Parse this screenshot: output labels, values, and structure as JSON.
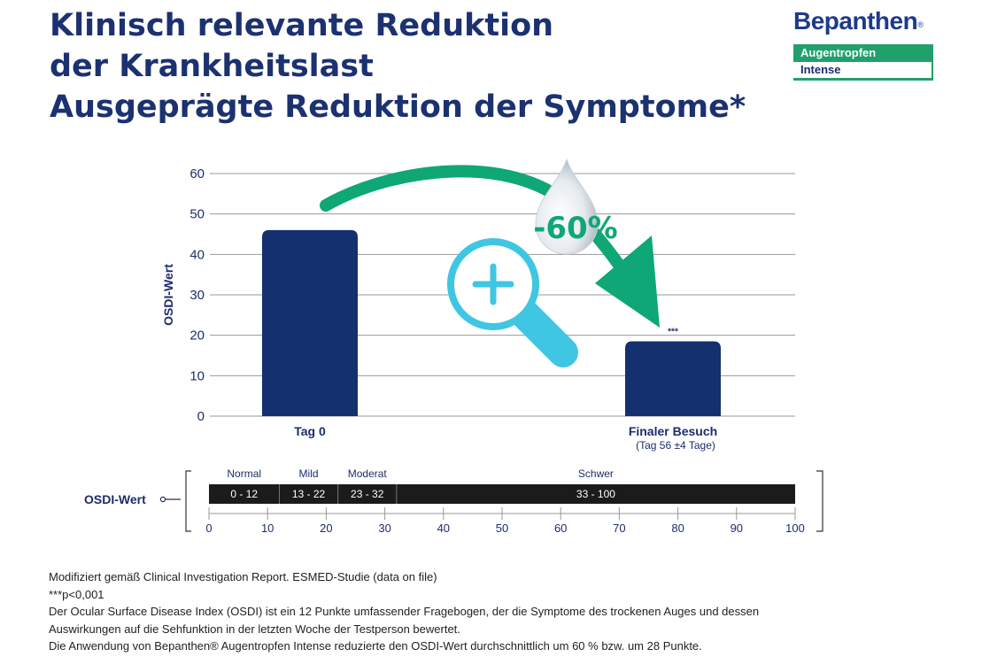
{
  "headline": {
    "line1": "Klinisch relevante Reduktion",
    "line2": "der Krankheitslast",
    "line3": "Ausgeprägte Reduktion der Symptome*"
  },
  "logo": {
    "brand": "Bepanthen",
    "registered": "®",
    "line1": "Augentropfen",
    "line2": "Intense"
  },
  "colors": {
    "navy": "#14306e",
    "green": "#0fa775",
    "cyan": "#3fc6e2",
    "scale_bar": "#1b1b1b",
    "text": "#1d2d6b"
  },
  "icons": {
    "magnifier": "magnifier-plus-icon",
    "drop": "water-drop-icon",
    "arrow": "curved-arrow-icon"
  },
  "chart_data": {
    "type": "bar",
    "categories": [
      "Tag 0",
      "Finaler Besuch"
    ],
    "category_sublabels": [
      "",
      "(Tag 56 ±4 Tage)"
    ],
    "values": [
      46,
      18.5
    ],
    "ylabel": "OSDI-Wert",
    "ylim": [
      0,
      60
    ],
    "yticks": [
      0,
      10,
      20,
      30,
      40,
      50,
      60
    ],
    "grid": true,
    "significance_label": "***",
    "reduction_label": "-60%"
  },
  "osdi_scale": {
    "label": "OSDI-Wert",
    "ticks": [
      0,
      10,
      20,
      30,
      40,
      50,
      60,
      70,
      80,
      90,
      100
    ],
    "segments": [
      {
        "name": "Normal",
        "range": "0 - 12",
        "from": 0,
        "to": 12
      },
      {
        "name": "Mild",
        "range": "13 - 22",
        "from": 12,
        "to": 22
      },
      {
        "name": "Moderat",
        "range": "23 - 32",
        "from": 22,
        "to": 32
      },
      {
        "name": "Schwer",
        "range": "33 - 100",
        "from": 32,
        "to": 100
      }
    ]
  },
  "footnotes": [
    "Modifiziert gemäß Clinical Investigation Report. ESMED-Studie (data on file)",
    "***p<0,001",
    "Der Ocular Surface Disease Index (OSDI) ist ein 12 Punkte umfassender Fragebogen, der die Symptome des trockenen Auges und dessen",
    "Auswirkungen auf die Sehfunktion in der letzten Woche der Testperson bewertet.",
    "Die Anwendung von Bepanthen® Augentropfen Intense reduzierte den OSDI-Wert durchschnittlich um 60 % bzw. um 28 Punkte."
  ]
}
